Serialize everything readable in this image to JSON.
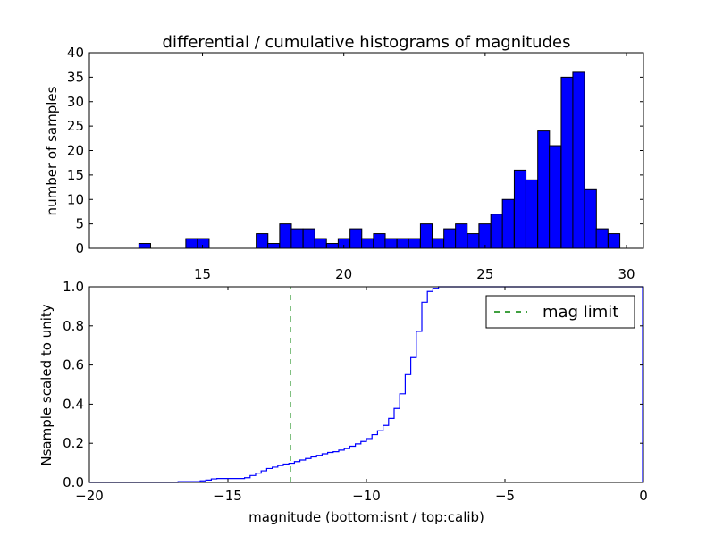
{
  "chart_data": [
    {
      "type": "bar",
      "title": "differential / cumulative histograms of magnitudes",
      "ylabel": "number of samples",
      "xlabel": "",
      "xlim": [
        11.0,
        30.6
      ],
      "ylim": [
        0,
        40
      ],
      "xticks": [
        "15",
        "20",
        "25",
        "30"
      ],
      "yticks": [
        "0",
        "5",
        "10",
        "15",
        "20",
        "25",
        "30",
        "35",
        "40"
      ],
      "bin_width": 0.415,
      "bar_color": "#0000ff",
      "bars": [
        {
          "x": 12.75,
          "value": 1
        },
        {
          "x": 14.41,
          "value": 2
        },
        {
          "x": 14.82,
          "value": 2
        },
        {
          "x": 16.9,
          "value": 3
        },
        {
          "x": 17.31,
          "value": 1
        },
        {
          "x": 17.73,
          "value": 5
        },
        {
          "x": 18.14,
          "value": 4
        },
        {
          "x": 18.56,
          "value": 4
        },
        {
          "x": 18.97,
          "value": 2
        },
        {
          "x": 19.39,
          "value": 1
        },
        {
          "x": 19.8,
          "value": 2
        },
        {
          "x": 20.22,
          "value": 4
        },
        {
          "x": 20.63,
          "value": 2
        },
        {
          "x": 21.05,
          "value": 3
        },
        {
          "x": 21.46,
          "value": 2
        },
        {
          "x": 21.88,
          "value": 2
        },
        {
          "x": 22.29,
          "value": 2
        },
        {
          "x": 22.71,
          "value": 5
        },
        {
          "x": 23.12,
          "value": 2
        },
        {
          "x": 23.54,
          "value": 4
        },
        {
          "x": 23.95,
          "value": 5
        },
        {
          "x": 24.37,
          "value": 3
        },
        {
          "x": 24.78,
          "value": 5
        },
        {
          "x": 25.2,
          "value": 7
        },
        {
          "x": 25.61,
          "value": 10
        },
        {
          "x": 26.03,
          "value": 16
        },
        {
          "x": 26.44,
          "value": 14
        },
        {
          "x": 26.86,
          "value": 24
        },
        {
          "x": 27.27,
          "value": 21
        },
        {
          "x": 27.69,
          "value": 35
        },
        {
          "x": 28.1,
          "value": 36
        },
        {
          "x": 28.52,
          "value": 12
        },
        {
          "x": 28.93,
          "value": 4
        },
        {
          "x": 29.35,
          "value": 3
        }
      ]
    },
    {
      "type": "line",
      "title": "",
      "xlabel": "magnitude (bottom:isnt / top:calib)",
      "ylabel": "Nsample scaled to unity",
      "xlim": [
        -20,
        0
      ],
      "ylim": [
        0.0,
        1.0
      ],
      "xticks": [
        "−20",
        "−15",
        "−10",
        "−5",
        "0"
      ],
      "yticks": [
        "0.0",
        "0.2",
        "0.4",
        "0.6",
        "0.8",
        "1.0"
      ],
      "grid": false,
      "legend_position": "top-right",
      "series": [
        {
          "name": "",
          "style": "step",
          "color": "#0000ff",
          "x": [
            -20.0,
            -16.8,
            -16.0,
            -15.8,
            -15.6,
            -15.4,
            -14.4,
            -14.2,
            -14.0,
            -13.8,
            -13.6,
            -13.4,
            -13.2,
            -13.0,
            -12.8,
            -12.6,
            -12.4,
            -12.2,
            -12.0,
            -11.8,
            -11.6,
            -11.4,
            -11.2,
            -11.0,
            -10.8,
            -10.6,
            -10.4,
            -10.2,
            -10.0,
            -9.8,
            -9.6,
            -9.4,
            -9.2,
            -9.0,
            -8.8,
            -8.6,
            -8.4,
            -8.2,
            -8.0,
            -7.8,
            -7.6,
            -7.4,
            -7.2,
            -7.0,
            -6.8,
            -6.6,
            -0.05
          ],
          "y": [
            0.0,
            0.004,
            0.008,
            0.012,
            0.018,
            0.02,
            0.024,
            0.035,
            0.047,
            0.059,
            0.071,
            0.078,
            0.086,
            0.094,
            0.098,
            0.106,
            0.114,
            0.122,
            0.13,
            0.138,
            0.146,
            0.153,
            0.157,
            0.165,
            0.173,
            0.185,
            0.197,
            0.209,
            0.224,
            0.244,
            0.264,
            0.291,
            0.327,
            0.378,
            0.453,
            0.551,
            0.638,
            0.772,
            0.921,
            0.976,
            0.992,
            1.0,
            1.0,
            1.0,
            1.0,
            1.0,
            1.0
          ]
        },
        {
          "name": "mag limit",
          "style": "dashed-vertical",
          "color": "#008000",
          "x": [
            -12.75,
            -12.75
          ],
          "y": [
            0.0,
            1.0
          ]
        }
      ]
    }
  ]
}
